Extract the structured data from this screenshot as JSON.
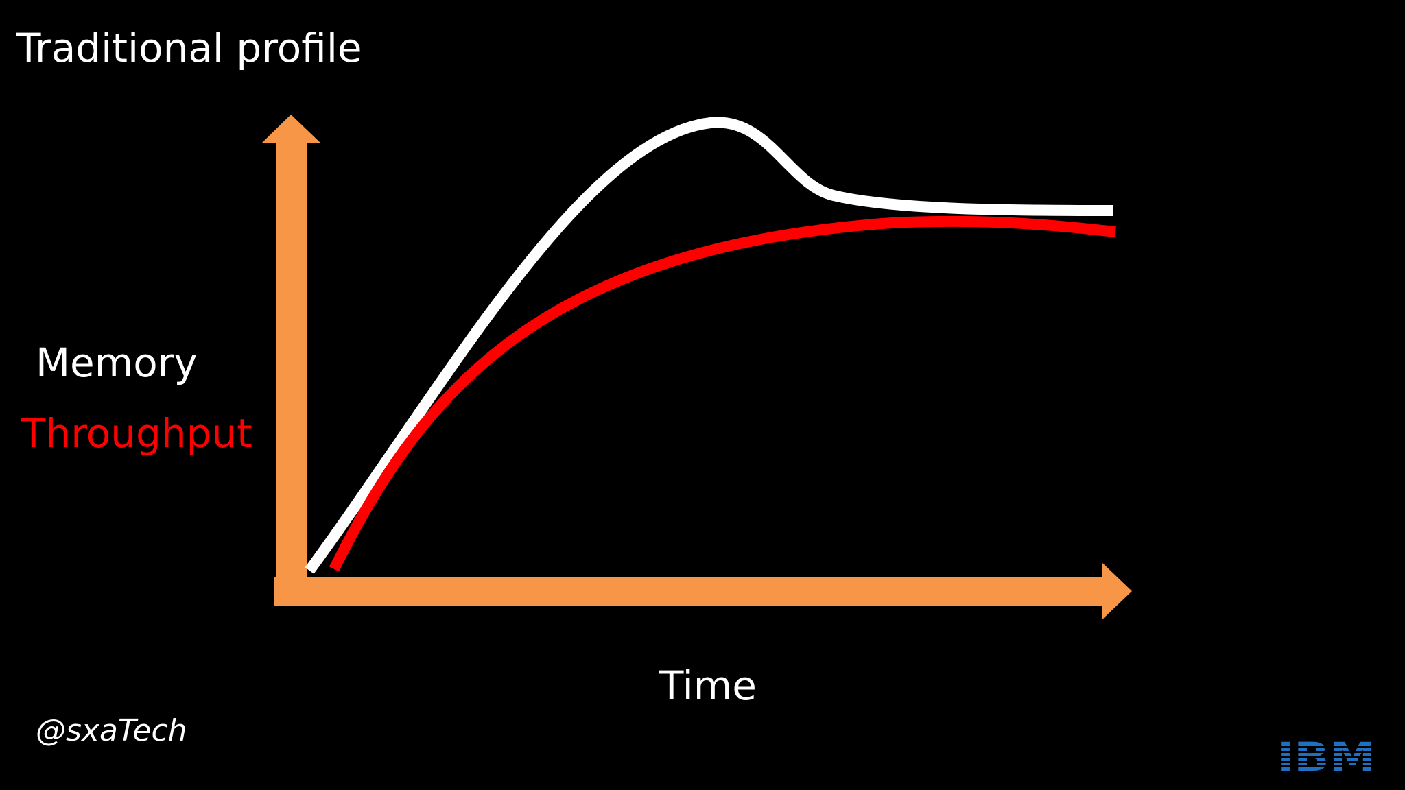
{
  "title": "Traditional profile",
  "y_labels": [
    "Memory",
    "Throughput"
  ],
  "x_label": "Time",
  "handle": "@sxaTech",
  "logo": "IBM"
}
